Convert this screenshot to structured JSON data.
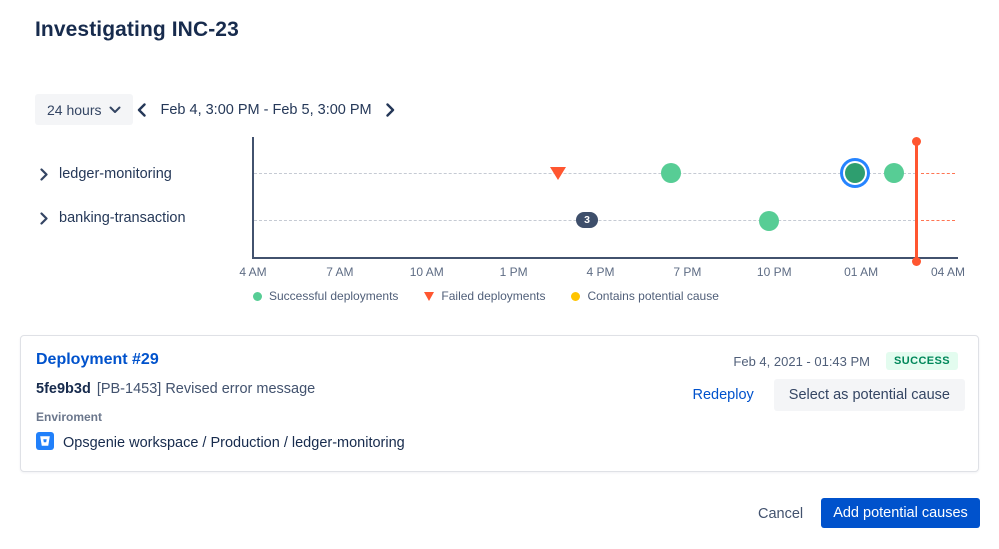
{
  "page": {
    "title": "Investigating INC-23"
  },
  "toolbar": {
    "range_selector": "24 hours",
    "date_range": "Feb 4, 3:00 PM - Feb 5, 3:00 PM"
  },
  "chart_data": {
    "type": "scatter",
    "rows": [
      "ledger-monitoring",
      "banking-transaction"
    ],
    "x_ticks": [
      "4 AM",
      "7 AM",
      "10 AM",
      "1 PM",
      "4 PM",
      "7 PM",
      "10 PM",
      "01 AM",
      "04 AM"
    ],
    "legend": [
      {
        "swatch": "green-dot",
        "label": "Successful deployments"
      },
      {
        "swatch": "red-triangle",
        "label": "Failed deployments"
      },
      {
        "swatch": "yellow-dot",
        "label": "Contains potential cause"
      }
    ],
    "events": [
      {
        "row": "ledger-monitoring",
        "time": "2:30 PM",
        "type": "failed-deployment"
      },
      {
        "row": "ledger-monitoring",
        "time": "6:25 PM",
        "type": "successful-deployment"
      },
      {
        "row": "ledger-monitoring",
        "time": "12:45 AM",
        "type": "successful-deployment",
        "selected": true
      },
      {
        "row": "ledger-monitoring",
        "time": "2:05 AM",
        "type": "successful-deployment"
      },
      {
        "row": "banking-transaction",
        "time": "3:30 PM",
        "type": "deployment-group",
        "count": "3"
      },
      {
        "row": "banking-transaction",
        "time": "9:50 PM",
        "type": "successful-deployment"
      }
    ],
    "time_cursor": "2:55 AM",
    "colors": {
      "success": "#57CD95",
      "success_selected": "#2E9E6F",
      "selected_ring": "#2684FF",
      "failed": "#FF5630",
      "potential_cause": "#FFC400",
      "cursor": "#FF5630",
      "axis": "#42526E"
    }
  },
  "deployment_card": {
    "title": "Deployment #29",
    "commit_hash": "5fe9b3d",
    "commit_message": "[PB-1453] Revised error message",
    "timestamp": "Feb 4, 2021 - 01:43 PM",
    "status": "SUCCESS",
    "redeploy_label": "Redeploy",
    "select_cause_label": "Select as potential cause",
    "environment_label": "Enviroment",
    "environment_path": "Opsgenie workspace / Production / ledger-monitoring"
  },
  "footer": {
    "cancel_label": "Cancel",
    "add_label": "Add potential causes"
  }
}
